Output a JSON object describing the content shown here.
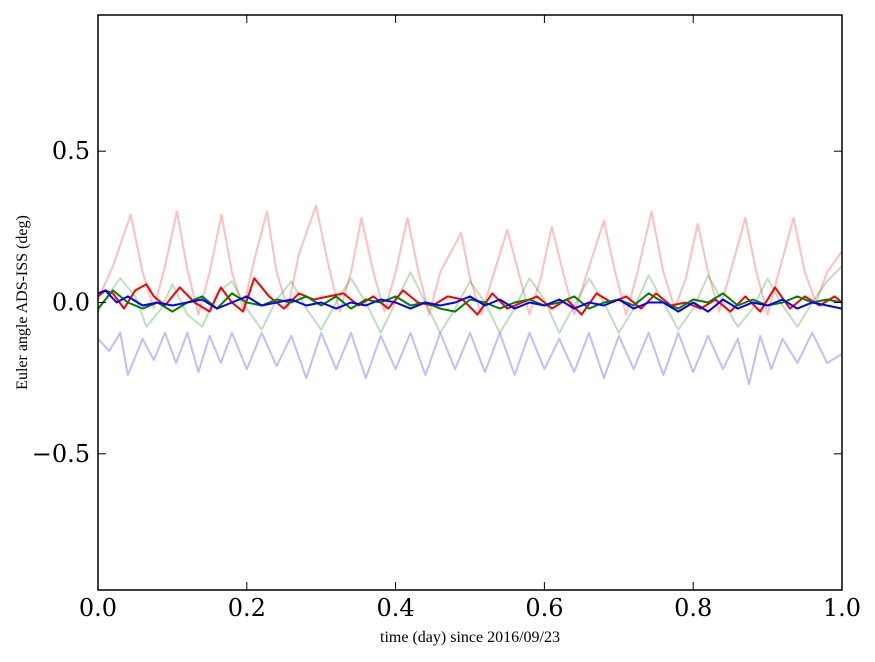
{
  "chart_data": {
    "type": "line",
    "xlabel": "time (day) since 2016/09/23",
    "ylabel": "Euler angle ADS-ISS (deg)",
    "xlim": [
      0.0,
      1.0
    ],
    "ylim": [
      -0.95,
      0.95
    ],
    "x_ticks": [
      0.0,
      0.2,
      0.4,
      0.6,
      0.8,
      1.0
    ],
    "x_tick_labels": [
      "0.0",
      "0.2",
      "0.4",
      "0.6",
      "0.8",
      "1.0"
    ],
    "y_ticks": [
      -0.5,
      0.0,
      0.5
    ],
    "y_tick_labels": [
      "−0.5",
      "0.0",
      "0.5"
    ],
    "grid": false,
    "legend": false,
    "series": [
      {
        "color": "#ff0000",
        "opacity": 0.25,
        "x": [
          0.0,
          0.02,
          0.044,
          0.06,
          0.075,
          0.09,
          0.106,
          0.12,
          0.135,
          0.15,
          0.166,
          0.18,
          0.195,
          0.21,
          0.227,
          0.24,
          0.255,
          0.27,
          0.293,
          0.31,
          0.325,
          0.34,
          0.354,
          0.37,
          0.385,
          0.4,
          0.416,
          0.43,
          0.445,
          0.46,
          0.488,
          0.5,
          0.515,
          0.53,
          0.55,
          0.565,
          0.58,
          0.595,
          0.61,
          0.625,
          0.64,
          0.655,
          0.68,
          0.695,
          0.71,
          0.725,
          0.744,
          0.76,
          0.775,
          0.79,
          0.806,
          0.82,
          0.835,
          0.85,
          0.87,
          0.885,
          0.9,
          0.915,
          0.935,
          0.95,
          0.965,
          0.98,
          1.0
        ],
        "y": [
          0.01,
          0.12,
          0.29,
          0.1,
          -0.02,
          0.12,
          0.3,
          0.11,
          -0.04,
          0.1,
          0.29,
          0.1,
          -0.02,
          0.14,
          0.3,
          0.1,
          -0.02,
          0.16,
          0.32,
          0.12,
          -0.03,
          0.1,
          0.28,
          0.1,
          -0.03,
          0.1,
          0.28,
          0.11,
          -0.04,
          0.1,
          0.23,
          0.08,
          -0.04,
          0.08,
          0.24,
          0.1,
          -0.04,
          0.08,
          0.25,
          0.1,
          -0.04,
          0.08,
          0.27,
          0.1,
          -0.04,
          0.1,
          0.3,
          0.1,
          -0.02,
          0.08,
          0.26,
          0.1,
          -0.03,
          0.1,
          0.28,
          0.1,
          -0.04,
          0.1,
          0.28,
          0.1,
          0.0,
          0.1,
          0.17
        ]
      },
      {
        "color": "#008000",
        "opacity": 0.25,
        "x": [
          0.0,
          0.015,
          0.03,
          0.05,
          0.065,
          0.085,
          0.1,
          0.12,
          0.14,
          0.16,
          0.18,
          0.2,
          0.22,
          0.24,
          0.26,
          0.28,
          0.3,
          0.32,
          0.34,
          0.36,
          0.38,
          0.4,
          0.42,
          0.44,
          0.46,
          0.48,
          0.5,
          0.52,
          0.54,
          0.56,
          0.58,
          0.6,
          0.62,
          0.64,
          0.66,
          0.68,
          0.7,
          0.72,
          0.74,
          0.76,
          0.78,
          0.8,
          0.82,
          0.84,
          0.86,
          0.88,
          0.9,
          0.92,
          0.94,
          0.96,
          0.98,
          1.0
        ],
        "y": [
          -0.03,
          0.03,
          0.08,
          0.02,
          -0.08,
          -0.02,
          0.06,
          -0.04,
          -0.08,
          0.03,
          0.07,
          -0.02,
          -0.09,
          0.01,
          0.07,
          -0.02,
          -0.09,
          0.0,
          0.08,
          0.0,
          -0.1,
          0.0,
          0.1,
          0.0,
          -0.1,
          -0.02,
          0.07,
          0.0,
          -0.1,
          -0.02,
          0.08,
          0.01,
          -0.1,
          -0.01,
          0.08,
          0.0,
          -0.1,
          -0.02,
          0.09,
          0.0,
          -0.09,
          -0.02,
          0.09,
          0.0,
          -0.08,
          -0.02,
          0.08,
          -0.01,
          -0.08,
          0.0,
          0.07,
          0.12
        ]
      },
      {
        "color": "#0000ff",
        "opacity": 0.25,
        "x": [
          0.0,
          0.015,
          0.03,
          0.04,
          0.06,
          0.075,
          0.09,
          0.105,
          0.12,
          0.135,
          0.15,
          0.165,
          0.18,
          0.2,
          0.22,
          0.24,
          0.26,
          0.28,
          0.3,
          0.32,
          0.34,
          0.36,
          0.38,
          0.4,
          0.42,
          0.44,
          0.46,
          0.48,
          0.5,
          0.52,
          0.54,
          0.56,
          0.58,
          0.6,
          0.62,
          0.64,
          0.66,
          0.68,
          0.7,
          0.72,
          0.74,
          0.76,
          0.78,
          0.8,
          0.82,
          0.84,
          0.86,
          0.875,
          0.89,
          0.905,
          0.92,
          0.94,
          0.96,
          0.98,
          1.0
        ],
        "y": [
          -0.12,
          -0.16,
          -0.1,
          -0.24,
          -0.12,
          -0.19,
          -0.1,
          -0.2,
          -0.1,
          -0.23,
          -0.11,
          -0.2,
          -0.1,
          -0.22,
          -0.1,
          -0.21,
          -0.11,
          -0.25,
          -0.1,
          -0.22,
          -0.1,
          -0.25,
          -0.11,
          -0.22,
          -0.1,
          -0.24,
          -0.1,
          -0.22,
          -0.1,
          -0.23,
          -0.1,
          -0.24,
          -0.1,
          -0.22,
          -0.12,
          -0.23,
          -0.1,
          -0.25,
          -0.11,
          -0.22,
          -0.1,
          -0.24,
          -0.1,
          -0.23,
          -0.11,
          -0.22,
          -0.12,
          -0.27,
          -0.11,
          -0.22,
          -0.12,
          -0.2,
          -0.1,
          -0.2,
          -0.17
        ]
      },
      {
        "color": "#ff0000",
        "opacity": 1,
        "x": [
          0.0,
          0.01,
          0.02,
          0.035,
          0.05,
          0.065,
          0.075,
          0.09,
          0.11,
          0.13,
          0.15,
          0.165,
          0.18,
          0.195,
          0.21,
          0.23,
          0.25,
          0.27,
          0.29,
          0.31,
          0.33,
          0.35,
          0.37,
          0.39,
          0.41,
          0.43,
          0.45,
          0.47,
          0.49,
          0.51,
          0.53,
          0.55,
          0.57,
          0.59,
          0.61,
          0.63,
          0.65,
          0.67,
          0.69,
          0.71,
          0.73,
          0.75,
          0.77,
          0.79,
          0.81,
          0.83,
          0.85,
          0.87,
          0.89,
          0.91,
          0.93,
          0.95,
          0.97,
          0.99,
          1.0
        ],
        "y": [
          0.02,
          0.04,
          0.03,
          -0.02,
          0.04,
          0.06,
          0.02,
          -0.01,
          0.05,
          0.0,
          -0.03,
          0.05,
          0.0,
          -0.03,
          0.08,
          0.02,
          -0.02,
          0.03,
          0.01,
          0.02,
          0.03,
          -0.01,
          0.02,
          -0.02,
          0.04,
          0.0,
          -0.01,
          0.02,
          0.01,
          -0.04,
          0.03,
          -0.02,
          0.0,
          0.02,
          -0.02,
          0.01,
          -0.04,
          0.03,
          0.0,
          0.02,
          -0.02,
          0.03,
          -0.01,
          0.0,
          -0.02,
          0.01,
          -0.03,
          0.02,
          -0.03,
          0.05,
          -0.02,
          0.02,
          -0.01,
          0.02,
          0.0
        ]
      },
      {
        "color": "#008000",
        "opacity": 1,
        "x": [
          0.0,
          0.02,
          0.04,
          0.06,
          0.08,
          0.1,
          0.12,
          0.14,
          0.16,
          0.18,
          0.2,
          0.22,
          0.24,
          0.26,
          0.28,
          0.3,
          0.32,
          0.34,
          0.36,
          0.38,
          0.4,
          0.42,
          0.44,
          0.46,
          0.48,
          0.5,
          0.52,
          0.54,
          0.56,
          0.58,
          0.6,
          0.62,
          0.64,
          0.66,
          0.68,
          0.7,
          0.72,
          0.74,
          0.76,
          0.78,
          0.8,
          0.82,
          0.84,
          0.86,
          0.88,
          0.9,
          0.92,
          0.94,
          0.96,
          0.98,
          1.0
        ],
        "y": [
          -0.02,
          0.04,
          0.0,
          -0.02,
          0.0,
          -0.03,
          0.0,
          0.02,
          -0.02,
          0.03,
          0.0,
          -0.01,
          0.01,
          0.0,
          0.02,
          -0.01,
          0.02,
          -0.02,
          0.01,
          0.0,
          0.02,
          -0.01,
          0.0,
          -0.02,
          -0.03,
          0.01,
          0.0,
          -0.02,
          0.0,
          0.01,
          -0.01,
          0.0,
          0.02,
          -0.02,
          0.0,
          0.01,
          -0.01,
          0.03,
          0.0,
          -0.02,
          0.01,
          0.0,
          0.03,
          -0.01,
          0.01,
          -0.01,
          0.0,
          0.02,
          0.0,
          0.01,
          0.0
        ]
      },
      {
        "color": "#0000ff",
        "opacity": 1,
        "x": [
          0.0,
          0.01,
          0.025,
          0.04,
          0.06,
          0.08,
          0.1,
          0.12,
          0.14,
          0.16,
          0.18,
          0.2,
          0.22,
          0.24,
          0.26,
          0.28,
          0.3,
          0.32,
          0.34,
          0.36,
          0.38,
          0.4,
          0.42,
          0.44,
          0.46,
          0.48,
          0.5,
          0.52,
          0.54,
          0.56,
          0.58,
          0.6,
          0.62,
          0.64,
          0.66,
          0.68,
          0.7,
          0.72,
          0.74,
          0.76,
          0.78,
          0.8,
          0.82,
          0.84,
          0.86,
          0.88,
          0.9,
          0.92,
          0.94,
          0.96,
          0.98,
          1.0
        ],
        "y": [
          0.03,
          0.04,
          0.0,
          0.02,
          -0.01,
          0.0,
          -0.01,
          0.0,
          0.01,
          -0.02,
          0.0,
          0.02,
          -0.01,
          0.0,
          0.01,
          -0.01,
          0.0,
          -0.02,
          0.0,
          -0.01,
          0.01,
          0.0,
          -0.02,
          0.0,
          -0.01,
          0.0,
          0.02,
          -0.01,
          0.01,
          -0.02,
          0.0,
          -0.01,
          0.01,
          -0.02,
          0.0,
          -0.01,
          0.01,
          -0.02,
          0.0,
          0.0,
          -0.03,
          0.0,
          -0.03,
          0.01,
          -0.02,
          0.0,
          -0.01,
          0.01,
          -0.02,
          0.0,
          -0.01,
          -0.02
        ]
      }
    ]
  }
}
